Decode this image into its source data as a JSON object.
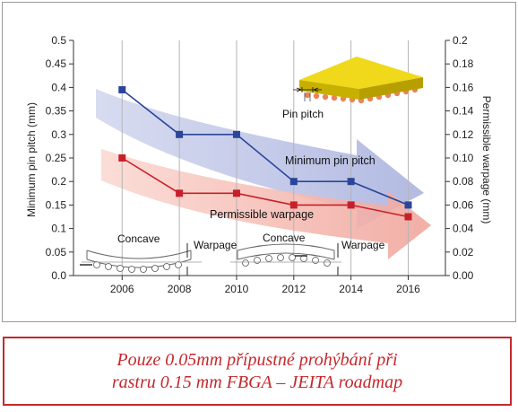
{
  "chart_data": {
    "type": "line",
    "x": [
      2006,
      2008,
      2010,
      2012,
      2014,
      2016
    ],
    "xlim": [
      2004.3,
      2017.3
    ],
    "series": [
      {
        "name": "Minimum pin pitch",
        "axis": "left",
        "color": "#2a4599",
        "values": [
          0.395,
          0.3,
          0.3,
          0.2,
          0.2,
          0.15
        ]
      },
      {
        "name": "Permissible warpage",
        "axis": "right",
        "color": "#c8202a",
        "values": [
          0.1,
          0.07,
          0.07,
          0.06,
          0.06,
          0.05
        ]
      }
    ],
    "left_axis": {
      "label": "Minimum pin pitch (mm)",
      "ylim": [
        0,
        0.5
      ],
      "ticks": [
        "0.0",
        "0.05",
        "0.1",
        "0.15",
        "0.2",
        "0.25",
        "0.3",
        "0.35",
        "0.4",
        "0.45",
        "0.5"
      ]
    },
    "right_axis": {
      "label": "Permissible warpage (mm)",
      "ylim": [
        0,
        0.2
      ],
      "ticks": [
        "0.00",
        "0.02",
        "0.04",
        "0.06",
        "0.08",
        "0.10",
        "0.12",
        "0.14",
        "0.16",
        "0.18",
        "0.2"
      ]
    },
    "x_ticks": [
      "2006",
      "2008",
      "2010",
      "2012",
      "2014",
      "2016"
    ],
    "gridlines": "vertical",
    "annotations": {
      "pitch_series_label": "Minimum pin pitch",
      "warpage_series_label": "Permissible warpage",
      "pin_pitch_label": "Pin pitch",
      "concave_label_1": "Concave",
      "concave_label_2": "Concave",
      "warpage_label_1": "Warpage",
      "warpage_label_2": "Warpage"
    },
    "colors": {
      "blue_trend_arrow": "#b8bfe3",
      "red_trend_arrow": "#f3b4ae",
      "package_top": "#f0d81a",
      "package_side": "#c8b000",
      "solder_balls": "#e8845a"
    }
  },
  "caption": {
    "line1": "Pouze 0.05mm přípustné prohýbání při",
    "line2": "rastru 0.15 mm FBGA – JEITA roadmap"
  }
}
